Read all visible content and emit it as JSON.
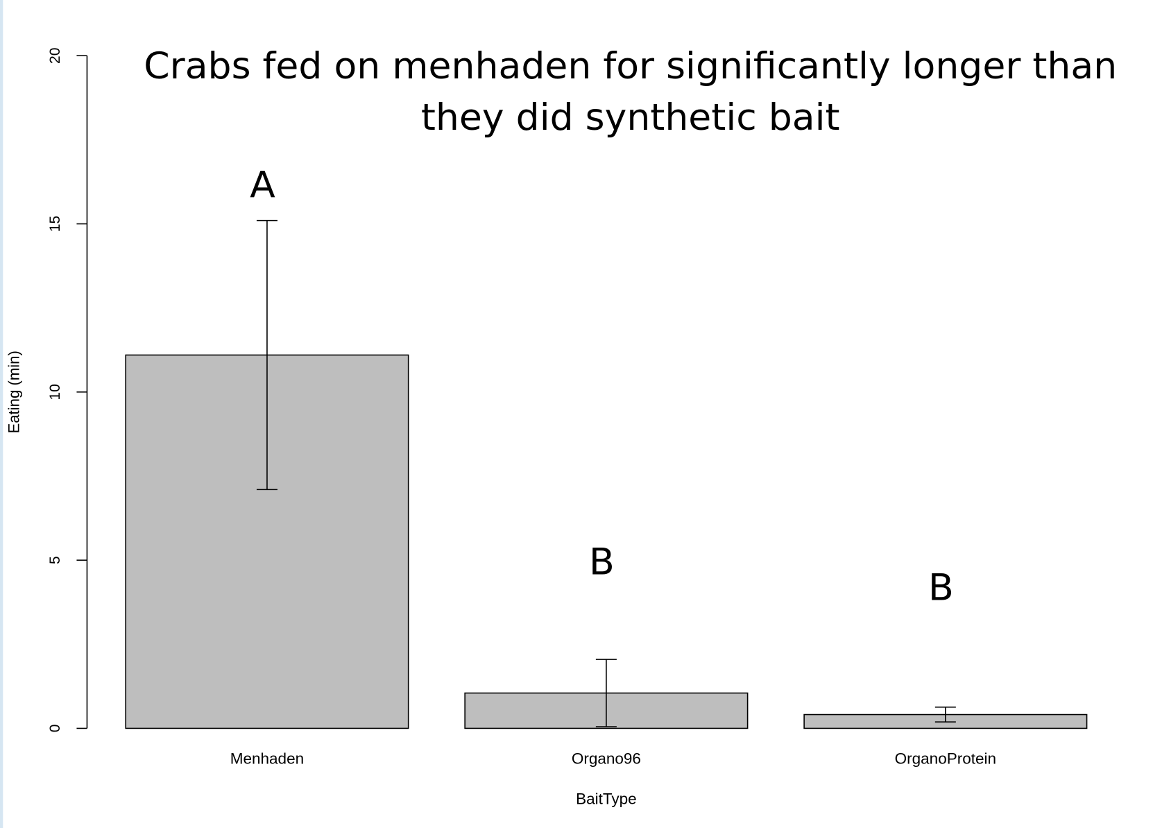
{
  "chart_data": {
    "type": "bar",
    "title": "Crabs fed on menhaden for significantly longer than they did synthetic bait",
    "xlabel": "BaitType",
    "ylabel": "Eating (min)",
    "categories": [
      "Menhaden",
      "Organo96",
      "OrganoProtein"
    ],
    "values": [
      11.1,
      1.05,
      0.41
    ],
    "errors": [
      4.0,
      1.0,
      0.22
    ],
    "annotations": [
      "A",
      "B",
      "B"
    ],
    "color": "#bebebe",
    "ylim": [
      0,
      20
    ],
    "yticks": [
      0,
      5,
      10,
      15,
      20
    ]
  }
}
